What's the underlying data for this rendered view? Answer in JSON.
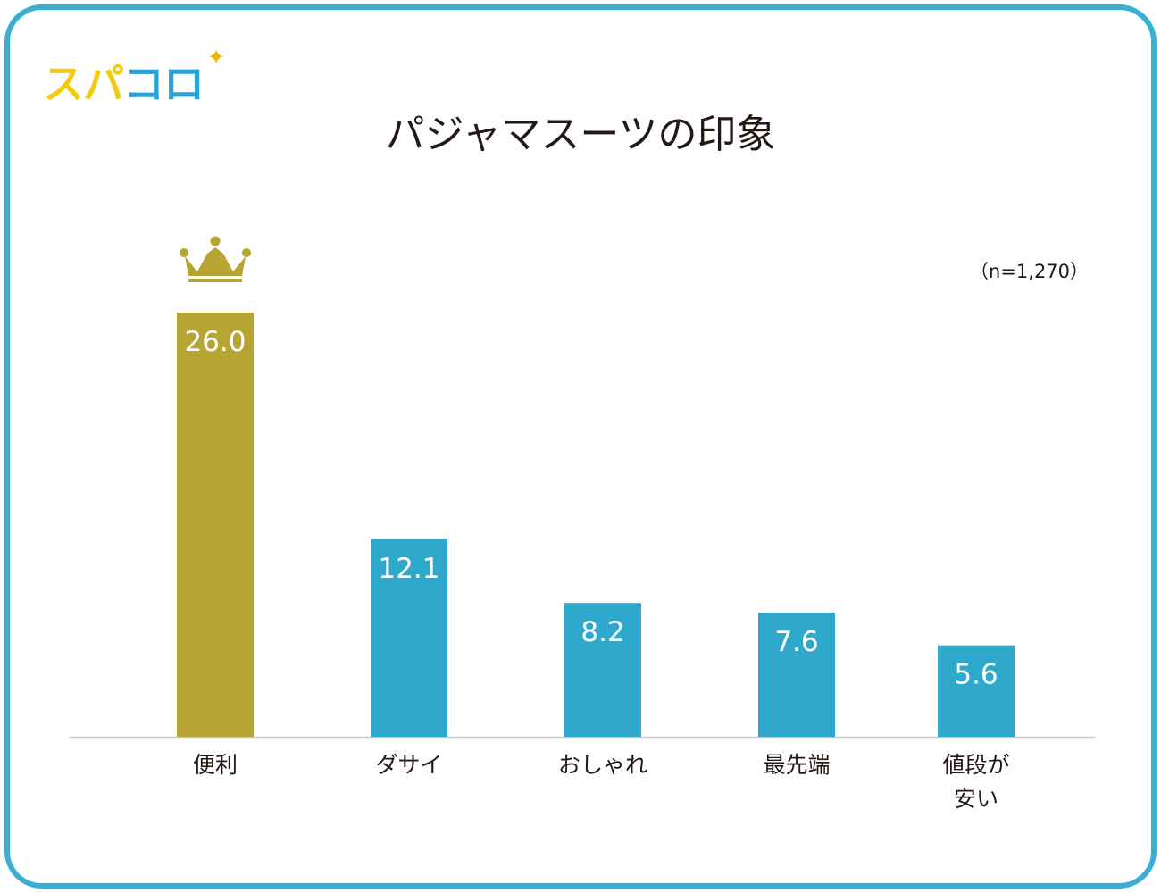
{
  "logo": {
    "text": "スパコロ",
    "sparkle": "✦"
  },
  "colors": {
    "frame": "#3aafd2",
    "bar": "#2fa9cb",
    "highlight": "#b6a533",
    "logo_yellow": "#f3cb13",
    "logo_blue": "#2ba2d6",
    "axis": "#c8c8c8"
  },
  "crown_icon": "crown-icon",
  "chart_data": {
    "type": "bar",
    "title": "パジャマスーツの印象",
    "note": "（n=1,270）",
    "categories": [
      "便利",
      "ダサイ",
      "おしゃれ",
      "最先端",
      "値段が安い"
    ],
    "category_lines": [
      [
        "便利"
      ],
      [
        "ダサイ"
      ],
      [
        "おしゃれ"
      ],
      [
        "最先端"
      ],
      [
        "値段が",
        "安い"
      ]
    ],
    "values": [
      26.0,
      12.1,
      8.2,
      7.6,
      5.6
    ],
    "value_labels": [
      "26.0",
      "12.1",
      "8.2",
      "7.6",
      "5.6"
    ],
    "highlight_index": 0,
    "ylim": [
      0,
      26.0
    ],
    "xlabel": "",
    "ylabel": "",
    "grid": false,
    "legend": "none"
  }
}
